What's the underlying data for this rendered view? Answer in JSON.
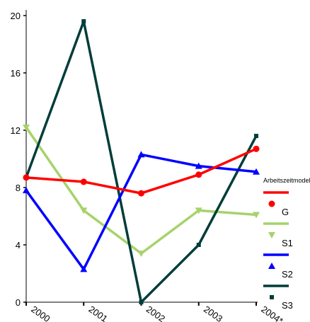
{
  "chart_data": {
    "type": "line",
    "categories": [
      "2000",
      "2001",
      "2002",
      "2003",
      "2004*"
    ],
    "ylim": [
      0,
      20
    ],
    "yticks": [
      0,
      4,
      8,
      12,
      16,
      20
    ],
    "grid": false,
    "legend": {
      "title": "Arbeitszeitmodell",
      "placement": "right"
    },
    "series": [
      {
        "name": "G",
        "color": "#ff0000",
        "marker": "circle",
        "values": [
          8.7,
          8.4,
          7.6,
          8.9,
          10.7
        ]
      },
      {
        "name": "S1",
        "color": "#a6d36a",
        "marker": "triangle-down",
        "values": [
          12.2,
          6.4,
          3.4,
          6.4,
          6.1
        ]
      },
      {
        "name": "S2",
        "color": "#0000ff",
        "marker": "triangle-up",
        "values": [
          7.8,
          2.3,
          10.3,
          9.5,
          9.1
        ]
      },
      {
        "name": "S3",
        "color": "#003d3a",
        "marker": "square",
        "values": [
          8.7,
          19.6,
          0.0,
          4.0,
          11.6
        ]
      }
    ]
  }
}
